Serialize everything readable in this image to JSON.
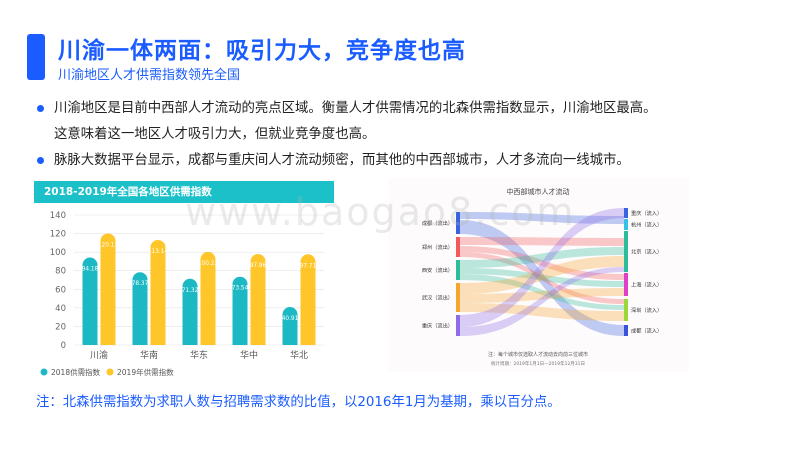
{
  "header": {
    "title": "川渝一体两面：吸引力大，竞争度也高",
    "subtitle": "川渝地区人才供需指数领先全国"
  },
  "bullets": [
    "川渝地区是目前中西部人才流动的亮点区域。衡量人才供需情况的北森供需指数显示，川渝地区最高。",
    "这意味着这一地区人才吸引力大，但就业竞争度也高。",
    "脉脉大数据平台显示，成都与重庆间人才流动频密，而其他的中西部城市，人才多流向一线城市。"
  ],
  "watermark": "www.baogao8.com",
  "bar_chart": {
    "header_title": "2018-2019年全国各地区供需指数"
  },
  "sankey": {
    "title": "中西部城市人才流动",
    "note": "注：每个城市仅选取人才流动去向前三位城市",
    "period": "统计周期：2019年1月1日—2019年12月31日",
    "sources": [
      {
        "label": "成都（流出）",
        "color": "#3a63e0"
      },
      {
        "label": "郑州（流出）",
        "color": "#f25a5a"
      },
      {
        "label": "西安（流出）",
        "color": "#2ebc9a"
      },
      {
        "label": "武汉（流出）",
        "color": "#f7a531"
      },
      {
        "label": "重庆（流出）",
        "color": "#8f6be8"
      }
    ],
    "targets": [
      {
        "label": "重庆（流入）",
        "color": "#3a63e0"
      },
      {
        "label": "杭州（流入）",
        "color": "#36c0e8"
      },
      {
        "label": "北京（流入）",
        "color": "#2ebc9a"
      },
      {
        "label": "上海（流入）",
        "color": "#e040c8"
      },
      {
        "label": "深圳（流入）",
        "color": "#9ad83a"
      },
      {
        "label": "成都（流入）",
        "color": "#3a53d8"
      }
    ]
  },
  "chart_data": {
    "type": "bar",
    "title": "2018-2019年全国各地区供需指数",
    "categories": [
      "川渝",
      "华南",
      "华东",
      "华中",
      "华北"
    ],
    "series": [
      {
        "name": "2018供需指数",
        "values": [
          94.18,
          78.37,
          71.32,
          73.54,
          40.91
        ],
        "color": "#1cb9c4"
      },
      {
        "name": "2019年供需指数",
        "values": [
          120.11,
          113.14,
          100.23,
          97.96,
          97.71
        ],
        "color": "#ffc629"
      }
    ],
    "ylim": [
      0,
      140
    ],
    "yticks": [
      0,
      20,
      40,
      60,
      80,
      100,
      120,
      140
    ],
    "data_labels": {
      "2018": [
        "94.18",
        "78.37",
        "71.32",
        "73.54",
        "40.91"
      ],
      "2019": [
        "120.11",
        "113.14",
        "100.23",
        "97.96",
        "97.71"
      ]
    },
    "grid": true,
    "legend": "bottom-left"
  },
  "footnote": "注：北森供需指数为求职人数与招聘需求数的比值，以2016年1月为基期，乘以百分点。"
}
